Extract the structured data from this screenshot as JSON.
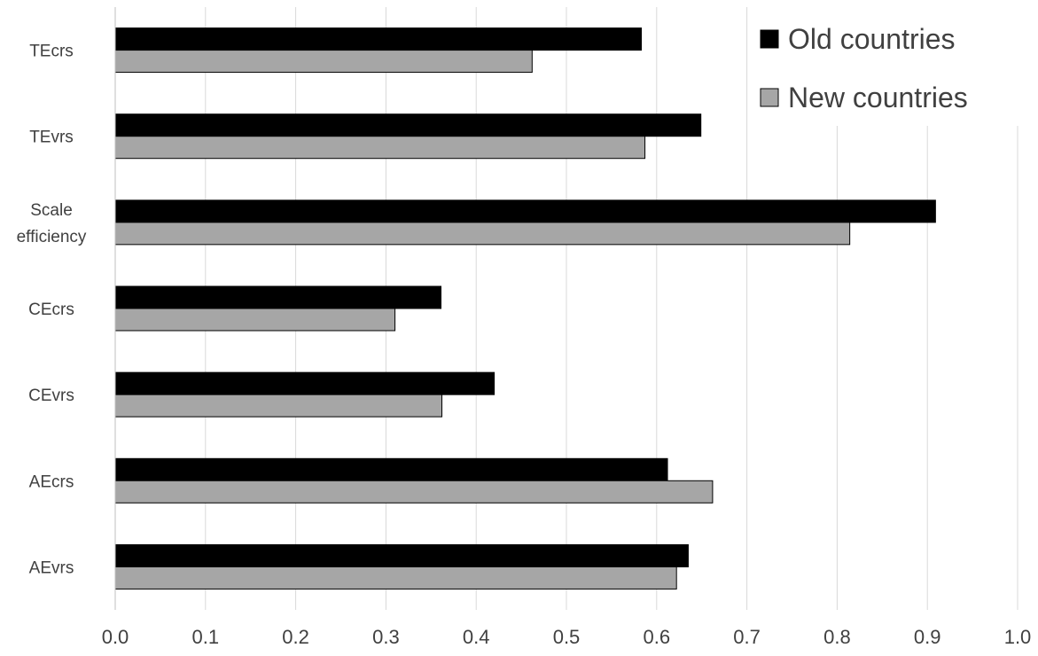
{
  "chart_data": {
    "type": "bar",
    "orientation": "horizontal",
    "categories": [
      "TEcrs",
      "TEvrs",
      "Scale efficiency",
      "CEcrs",
      "CEvrs",
      "AEcrs",
      "AEvrs"
    ],
    "series": [
      {
        "name": "Old countries",
        "color": "#000000",
        "values": [
          0.583,
          0.649,
          0.909,
          0.361,
          0.42,
          0.612,
          0.635
        ]
      },
      {
        "name": "New countries",
        "color": "#a6a6a6",
        "values": [
          0.462,
          0.587,
          0.814,
          0.31,
          0.362,
          0.662,
          0.622
        ]
      }
    ],
    "xlim": [
      0.0,
      1.0
    ],
    "xticks": [
      "0.0",
      "0.1",
      "0.2",
      "0.3",
      "0.4",
      "0.5",
      "0.6",
      "0.7",
      "0.8",
      "0.9",
      "1.0"
    ],
    "grid": true,
    "legend_position": "top-right"
  }
}
